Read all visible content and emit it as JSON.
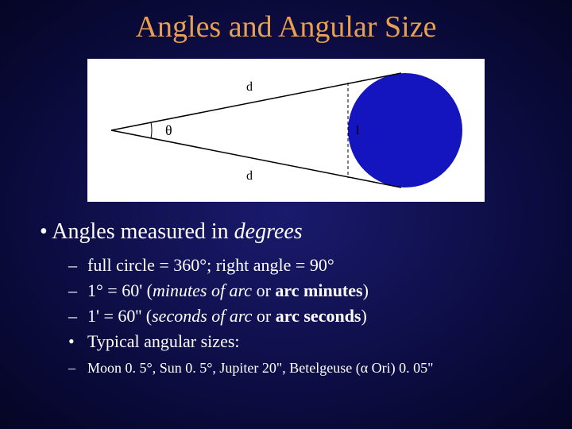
{
  "title": {
    "text": "Angles and Angular Size",
    "color": "#e8a050"
  },
  "diagram": {
    "theta_label": "θ",
    "d_label_top": "d",
    "d_label_bottom": "d",
    "l_label": "l",
    "circle_color": "#1515c0",
    "line_color": "#000000",
    "bg_color": "#ffffff"
  },
  "main_bullet": {
    "prefix": "Angles measured in ",
    "emph": "degrees"
  },
  "sub_items": [
    {
      "marker": "–",
      "text": "full circle = 360°; right angle = 90°"
    },
    {
      "marker": "–",
      "html": "1° = 60'  (<i>minutes of arc</i> or <b>arc minutes</b>)"
    },
    {
      "marker": "–",
      "html": "1' = 60''  (<i>seconds of arc</i> or <b>arc seconds</b>)"
    },
    {
      "marker": "•",
      "text": "Typical angular sizes:"
    },
    {
      "marker": "–",
      "small": true,
      "text": "Moon 0. 5°,  Sun 0. 5°, Jupiter 20\", Betelgeuse (α Ori) 0. 05\""
    }
  ]
}
